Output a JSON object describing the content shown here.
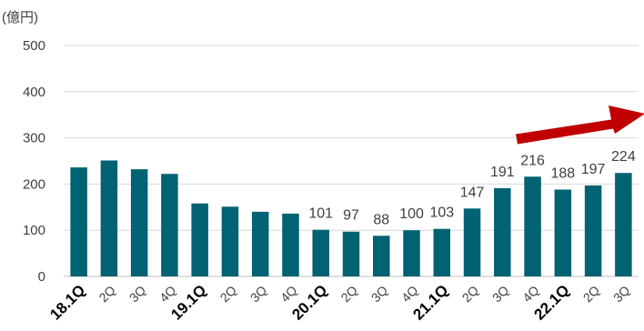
{
  "chart_data": {
    "type": "bar",
    "unit_label": "(億円)",
    "categories": [
      "18.1Q",
      "2Q",
      "3Q",
      "4Q",
      "19.1Q",
      "2Q",
      "3Q",
      "4Q",
      "20.1Q",
      "2Q",
      "3Q",
      "4Q",
      "21.1Q",
      "2Q",
      "3Q",
      "4Q",
      "22.1Q",
      "2Q",
      "3Q"
    ],
    "values": [
      236,
      251,
      232,
      222,
      158,
      151,
      140,
      136,
      101,
      97,
      88,
      100,
      103,
      147,
      191,
      216,
      188,
      197,
      224
    ],
    "data_labels": [
      "",
      "",
      "",
      "",
      "",
      "",
      "",
      "",
      "101",
      "97",
      "88",
      "100",
      "103",
      "147",
      "191",
      "216",
      "188",
      "197",
      "224"
    ],
    "year_start_categories": [
      "18.1Q",
      "19.1Q",
      "20.1Q",
      "21.1Q",
      "22.1Q"
    ],
    "y_ticks": [
      "0",
      "100",
      "200",
      "300",
      "400",
      "500"
    ],
    "ylim": [
      0,
      500
    ],
    "grid": true,
    "bar_color": "#006272",
    "grid_color": "#d9d9d9",
    "arrow_color": "#c00000",
    "trend_arrow": "upward",
    "title": "",
    "xlabel": "",
    "ylabel": ""
  }
}
